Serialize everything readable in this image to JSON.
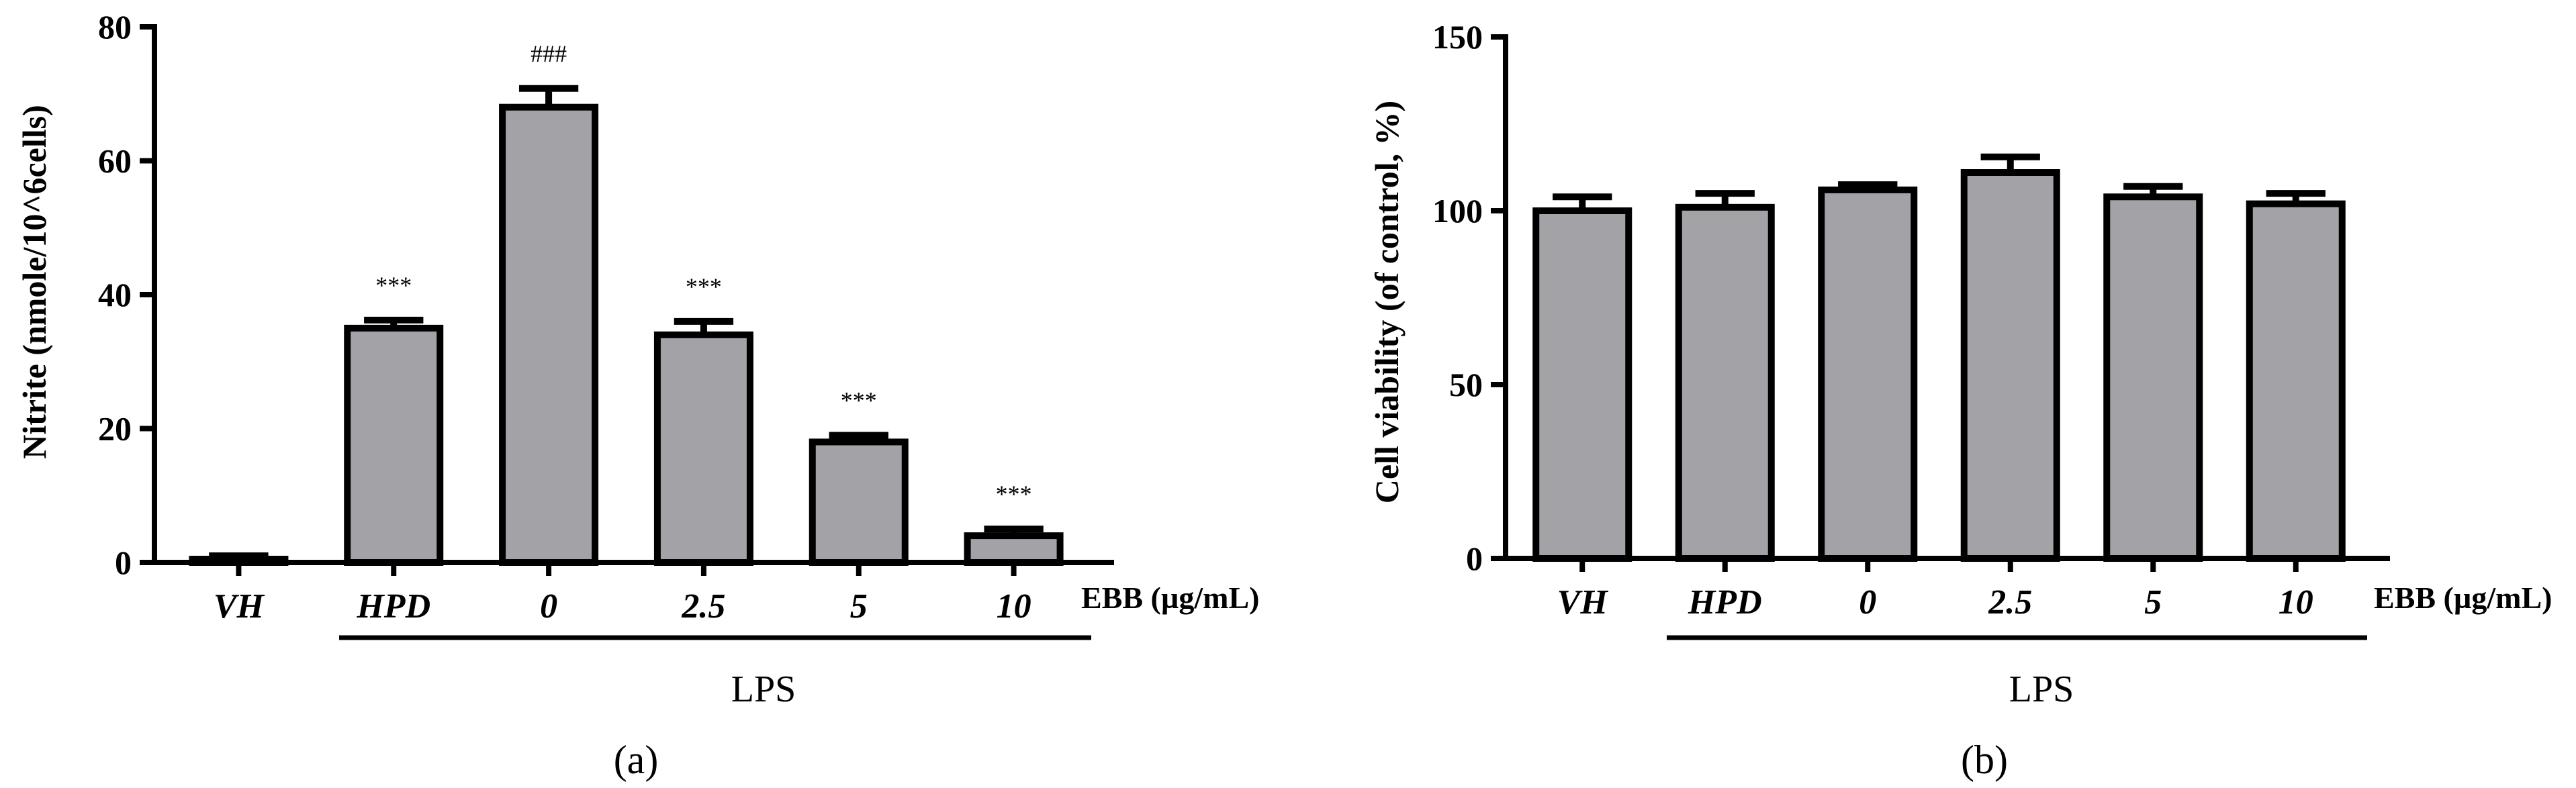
{
  "chart_data": [
    {
      "type": "bar",
      "panel_label": "(a)",
      "categories": [
        "VH",
        "HPD",
        "0",
        "2.5",
        "5",
        "10"
      ],
      "values": [
        0.5,
        35,
        68,
        34,
        18,
        4
      ],
      "errors": [
        0.5,
        1.2,
        2.8,
        2,
        1,
        1
      ],
      "annotations": [
        "",
        "***",
        "###",
        "***",
        "***",
        "***"
      ],
      "ylabel": "Nitrite  (nmole/10^6cells)",
      "xlabel": "EBB (µg/mL)",
      "group_label": "LPS",
      "ylim": [
        0,
        80
      ],
      "yticks": [
        0,
        20,
        40,
        60,
        80
      ],
      "grid": false
    },
    {
      "type": "bar",
      "panel_label": "(b)",
      "categories": [
        "VH",
        "HPD",
        "0",
        "2.5",
        "5",
        "10"
      ],
      "values": [
        100,
        101,
        106,
        111,
        104,
        102
      ],
      "errors": [
        4,
        4,
        1.5,
        4.5,
        3,
        3
      ],
      "annotations": [
        "",
        "",
        "",
        "",
        "",
        ""
      ],
      "ylabel": "Cell viability (of control, %)",
      "xlabel": "EBB (µg/mL)",
      "group_label": "LPS",
      "ylim": [
        0,
        150
      ],
      "yticks": [
        0,
        50,
        100,
        150
      ],
      "grid": false
    }
  ]
}
